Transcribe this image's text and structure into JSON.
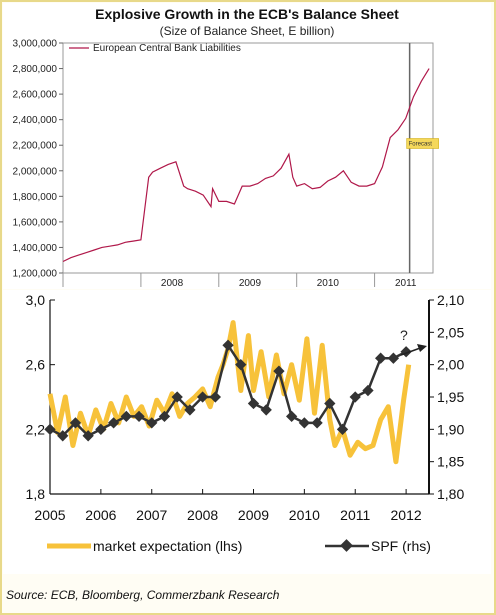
{
  "source": "Source: ECB, Bloomberg, Commerzbank Research",
  "chart_data": [
    {
      "type": "line",
      "title": "Explosive Growth in the ECB's Balance Sheet",
      "subtitle": "(Size of Balance Sheet, E billion)",
      "legend": [
        "European Central Bank Liabilities"
      ],
      "legend_position": "top-left",
      "ylim": [
        1200000,
        3000000
      ],
      "yticks": [
        "1,200,000",
        "1,400,000",
        "1,600,000",
        "1,800,000",
        "2,000,000",
        "2,200,000",
        "2,400,000",
        "2,600,000",
        "2,800,000",
        "3,000,000"
      ],
      "xticks": [
        "2008",
        "2009",
        "2010",
        "2011"
      ],
      "forecast_label": "Forecast",
      "forecast_start": 2011.45,
      "series": [
        {
          "name": "European Central Bank Liabilities",
          "color": "#b0184a",
          "x": [
            2007.0,
            2007.1,
            2007.2,
            2007.3,
            2007.4,
            2007.5,
            2007.6,
            2007.7,
            2007.8,
            2007.9,
            2008.0,
            2008.1,
            2008.15,
            2008.25,
            2008.35,
            2008.45,
            2008.55,
            2008.6,
            2008.7,
            2008.8,
            2008.9,
            2008.92,
            2009.0,
            2009.1,
            2009.2,
            2009.3,
            2009.4,
            2009.5,
            2009.6,
            2009.7,
            2009.8,
            2009.9,
            2009.95,
            2010.0,
            2010.1,
            2010.2,
            2010.3,
            2010.4,
            2010.5,
            2010.6,
            2010.7,
            2010.8,
            2010.9,
            2011.0,
            2011.1,
            2011.2,
            2011.3,
            2011.4,
            2011.5,
            2011.6,
            2011.7
          ],
          "y": [
            1290000,
            1320000,
            1340000,
            1360000,
            1380000,
            1400000,
            1410000,
            1420000,
            1440000,
            1450000,
            1460000,
            1950000,
            1990000,
            2020000,
            2050000,
            2070000,
            1880000,
            1860000,
            1840000,
            1810000,
            1720000,
            1860000,
            1760000,
            1760000,
            1740000,
            1880000,
            1880000,
            1900000,
            1940000,
            1960000,
            2020000,
            2130000,
            1950000,
            1880000,
            1900000,
            1860000,
            1870000,
            1920000,
            1950000,
            2000000,
            1910000,
            1880000,
            1880000,
            1900000,
            2030000,
            2260000,
            2320000,
            2410000,
            2580000,
            2700000,
            2800000
          ]
        }
      ]
    },
    {
      "type": "line",
      "xticks": [
        "2005",
        "2006",
        "2007",
        "2008",
        "2009",
        "2010",
        "2011",
        "2012"
      ],
      "ylim_left": [
        1.8,
        3.0
      ],
      "yticks_left": [
        "1,8",
        "2,2",
        "2,6",
        "3,0"
      ],
      "ylim_right": [
        1.8,
        2.1
      ],
      "yticks_right": [
        "1,80",
        "1,85",
        "1,90",
        "1,95",
        "2,00",
        "2,05",
        "2,10"
      ],
      "annotation": "?",
      "legend_position": "bottom",
      "series": [
        {
          "name": "market expectation (lhs)",
          "color": "#f7c23a",
          "axis": "left",
          "x": [
            2005.0,
            2005.15,
            2005.3,
            2005.45,
            2005.6,
            2005.75,
            2005.9,
            2006.05,
            2006.2,
            2006.35,
            2006.5,
            2006.65,
            2006.8,
            2006.95,
            2007.1,
            2007.25,
            2007.4,
            2007.55,
            2007.7,
            2007.85,
            2008.0,
            2008.15,
            2008.3,
            2008.4,
            2008.5,
            2008.6,
            2008.75,
            2008.9,
            2009.0,
            2009.15,
            2009.3,
            2009.45,
            2009.6,
            2009.75,
            2009.9,
            2010.05,
            2010.2,
            2010.35,
            2010.5,
            2010.6,
            2010.75,
            2010.9,
            2011.05,
            2011.2,
            2011.35,
            2011.5,
            2011.65,
            2011.8,
            2011.95,
            2012.05
          ],
          "y": [
            2.42,
            2.18,
            2.4,
            2.1,
            2.3,
            2.16,
            2.32,
            2.2,
            2.36,
            2.24,
            2.4,
            2.28,
            2.34,
            2.22,
            2.38,
            2.3,
            2.42,
            2.28,
            2.36,
            2.4,
            2.45,
            2.34,
            2.52,
            2.6,
            2.7,
            2.86,
            2.44,
            2.78,
            2.44,
            2.68,
            2.4,
            2.66,
            2.42,
            2.6,
            2.38,
            2.76,
            2.3,
            2.72,
            2.26,
            2.1,
            2.2,
            2.04,
            2.12,
            2.08,
            2.1,
            2.26,
            2.34,
            2.0,
            2.38,
            2.6
          ]
        },
        {
          "name": "SPF (rhs)",
          "color": "#333333",
          "axis": "right",
          "x": [
            2005.0,
            2005.25,
            2005.5,
            2005.75,
            2006.0,
            2006.25,
            2006.5,
            2006.75,
            2007.0,
            2007.25,
            2007.5,
            2007.75,
            2008.0,
            2008.25,
            2008.5,
            2008.75,
            2009.0,
            2009.25,
            2009.5,
            2009.75,
            2010.0,
            2010.25,
            2010.5,
            2010.75,
            2011.0,
            2011.25,
            2011.5,
            2011.75,
            2012.0
          ],
          "y": [
            1.9,
            1.89,
            1.91,
            1.89,
            1.9,
            1.91,
            1.92,
            1.92,
            1.91,
            1.92,
            1.95,
            1.93,
            1.95,
            1.95,
            2.03,
            2.0,
            1.94,
            1.93,
            1.99,
            1.92,
            1.91,
            1.91,
            1.94,
            1.9,
            1.95,
            1.96,
            2.01,
            2.01,
            2.02
          ]
        }
      ]
    }
  ]
}
